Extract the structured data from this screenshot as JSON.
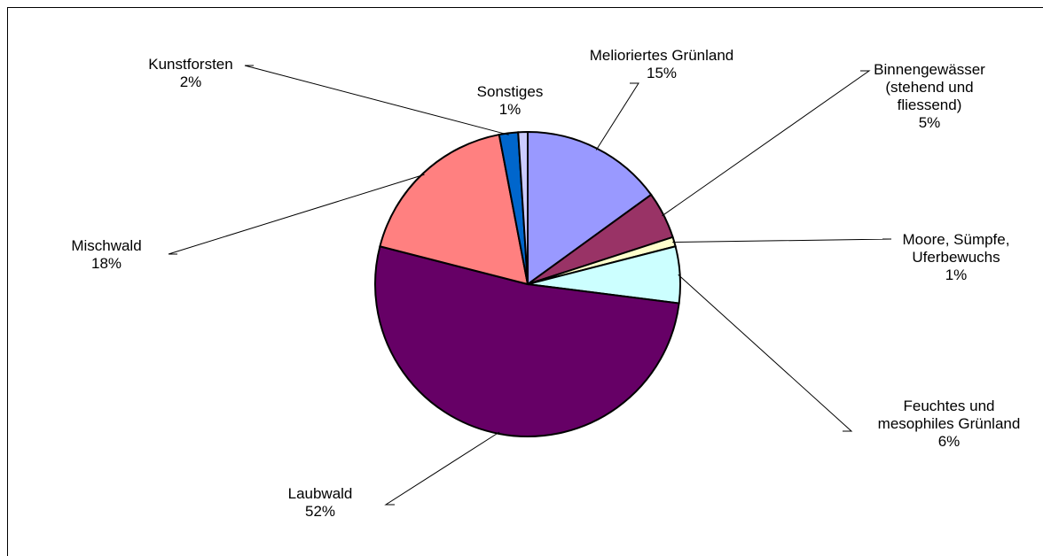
{
  "chart_data": {
    "type": "pie",
    "title": "",
    "unit": "%",
    "start_angle_deg": 0,
    "direction": "clockwise",
    "slices": [
      {
        "name": "Melioriertes Grünland",
        "value": 15,
        "label_lines": [
          "Melioriertes Grünland",
          "15%"
        ],
        "color": "#9999FF"
      },
      {
        "name": "Binnengewässer (stehend und fliessend)",
        "value": 5,
        "label_lines": [
          "Binnengewässer",
          "(stehend und",
          "fliessend)",
          "5%"
        ],
        "color": "#993366"
      },
      {
        "name": "Moore, Sümpfe, Uferbewuchs",
        "value": 1,
        "label_lines": [
          "Moore, Sümpfe,",
          "Uferbewuchs",
          "1%"
        ],
        "color": "#FFFFCC"
      },
      {
        "name": "Feuchtes und mesophiles Grünland",
        "value": 6,
        "label_lines": [
          "Feuchtes und",
          "mesophiles Grünland",
          "6%"
        ],
        "color": "#CCFFFF"
      },
      {
        "name": "Laubwald",
        "value": 52,
        "label_lines": [
          "Laubwald",
          "52%"
        ],
        "color": "#660066"
      },
      {
        "name": "Mischwald",
        "value": 18,
        "label_lines": [
          "Mischwald",
          "18%"
        ],
        "color": "#FF8080"
      },
      {
        "name": "Kunstforsten",
        "value": 2,
        "label_lines": [
          "Kunstforsten",
          "2%"
        ],
        "color": "#0066CC"
      },
      {
        "name": "Sonstiges",
        "value": 1,
        "label_lines": [
          "Sonstiges",
          "1%"
        ],
        "color": "#CCCCFF"
      }
    ]
  }
}
